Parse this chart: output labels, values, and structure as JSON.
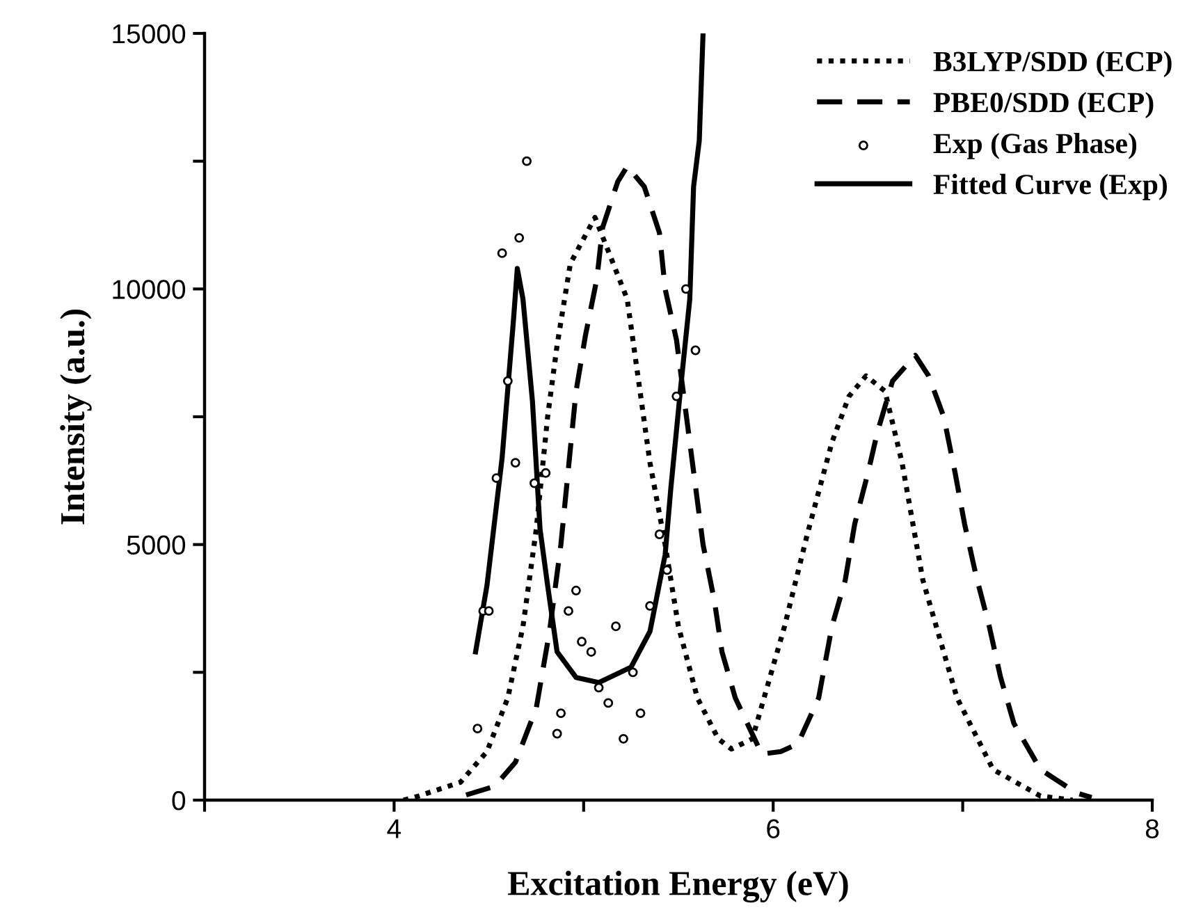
{
  "chart_data": {
    "type": "line",
    "xlabel": "Excitation Energy (eV)",
    "ylabel": "Intensity (a.u.)",
    "xlim": [
      3,
      8
    ],
    "xticks": [
      {
        "value": 3,
        "label": null
      },
      4,
      {
        "value": 5,
        "label": null
      },
      6,
      {
        "value": 7,
        "label": null
      },
      8
    ],
    "ylim": [
      0,
      15000
    ],
    "yticks": [
      0,
      {
        "value": 2500,
        "label": null
      },
      5000,
      {
        "value": 7500,
        "label": null
      },
      10000,
      {
        "value": 12500,
        "label": null
      },
      15000
    ],
    "grid": false,
    "legend": "top right",
    "series": [
      {
        "name": "B3LYP/SDD (ECP)",
        "color": "#000000",
        "line_style": "dotted",
        "x": [
          4.05,
          4.13,
          4.35,
          4.49,
          4.6,
          4.68,
          4.75,
          4.81,
          4.86,
          4.93,
          5.06,
          5.23,
          5.35,
          5.43,
          5.5,
          5.6,
          5.71,
          5.78,
          5.89,
          6.06,
          6.18,
          6.31,
          6.4,
          6.49,
          6.59,
          6.68,
          6.79,
          6.97,
          7.16,
          7.41,
          7.58
        ],
        "values": [
          0,
          80,
          350,
          950,
          2000,
          3400,
          5300,
          7500,
          8900,
          10500,
          11400,
          9800,
          6600,
          5000,
          3400,
          2000,
          1200,
          1000,
          1200,
          3400,
          5200,
          7000,
          7900,
          8300,
          8000,
          6600,
          4300,
          2000,
          600,
          80,
          0
        ]
      },
      {
        "name": "PBE0/SDD (ECP)",
        "color": "#000000",
        "line_style": "dashed",
        "x": [
          4.38,
          4.53,
          4.64,
          4.75,
          4.82,
          4.88,
          4.96,
          5.01,
          5.07,
          5.1,
          5.18,
          5.23,
          5.32,
          5.4,
          5.43,
          5.49,
          5.56,
          5.63,
          5.69,
          5.73,
          5.8,
          5.94,
          6.04,
          6.13,
          6.24,
          6.31,
          6.38,
          6.43,
          6.5,
          6.55,
          6.63,
          6.75,
          6.82,
          6.9,
          6.96,
          7.01,
          7.07,
          7.14,
          7.2,
          7.27,
          7.41,
          7.6,
          7.68
        ],
        "values": [
          100,
          270,
          740,
          1800,
          3300,
          5000,
          8000,
          9100,
          10200,
          11200,
          12100,
          12400,
          12000,
          11100,
          10000,
          9000,
          7000,
          5000,
          3900,
          2900,
          2000,
          900,
          950,
          1100,
          2000,
          3400,
          4300,
          5400,
          6400,
          7200,
          8200,
          8700,
          8300,
          7500,
          6400,
          5400,
          4400,
          3400,
          2400,
          1500,
          600,
          140,
          50
        ]
      },
      {
        "name": "Exp (Gas Phase)",
        "type": "scatter",
        "color": "#000000",
        "marker": "circle",
        "x": [
          4.44,
          4.47,
          4.5,
          4.54,
          4.57,
          4.6,
          4.64,
          4.66,
          4.7,
          4.74,
          4.8,
          4.86,
          4.88,
          4.92,
          4.96,
          4.99,
          5.04,
          5.08,
          5.13,
          5.17,
          5.21,
          5.26,
          5.3,
          5.35,
          5.4,
          5.44,
          5.49,
          5.54,
          5.59
        ],
        "values": [
          1400,
          3700,
          3700,
          6300,
          10700,
          8200,
          6600,
          11000,
          12500,
          6200,
          6400,
          1300,
          1700,
          3700,
          4100,
          3100,
          2900,
          2200,
          1900,
          3400,
          1200,
          2500,
          1700,
          3800,
          5200,
          4500,
          7900,
          10000,
          8800
        ]
      },
      {
        "name": "Fitted Curve (Exp)",
        "color": "#000000",
        "line_style": "solid",
        "x": [
          4.43,
          4.49,
          4.57,
          4.63,
          4.65,
          4.68,
          4.73,
          4.77,
          4.81,
          4.86,
          4.96,
          5.08,
          5.25,
          5.35,
          5.43,
          5.46,
          5.51,
          5.56,
          5.58,
          5.61,
          5.63
        ],
        "values": [
          2900,
          4200,
          6700,
          9400,
          10400,
          9800,
          7800,
          5300,
          4200,
          2900,
          2400,
          2300,
          2600,
          3300,
          4800,
          6100,
          8000,
          9800,
          12000,
          12900,
          15000
        ]
      }
    ]
  }
}
